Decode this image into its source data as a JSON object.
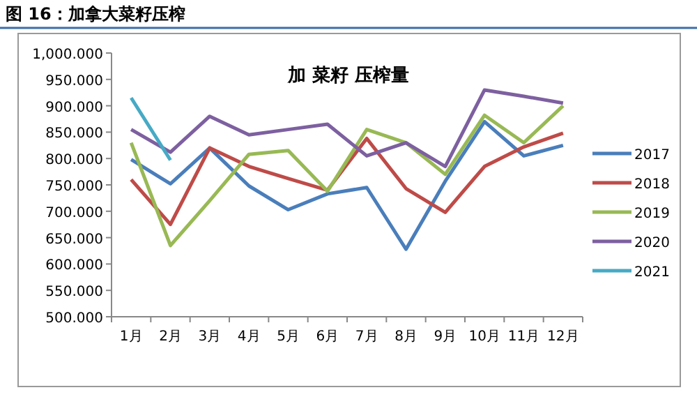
{
  "chart_data": {
    "type": "line",
    "title": "图 16：加拿大菜籽压榨",
    "subtitle": "加 菜籽 压榨量",
    "categories": [
      "1月",
      "2月",
      "3月",
      "4月",
      "5月",
      "6月",
      "7月",
      "8月",
      "9月",
      "10月",
      "11月",
      "12月"
    ],
    "series": [
      {
        "name": "2017",
        "color": "#4a7ebb",
        "values": [
          798,
          752,
          820,
          748,
          703,
          733,
          745,
          628,
          757,
          870,
          805,
          825
        ]
      },
      {
        "name": "2018",
        "color": "#be4b48",
        "values": [
          760,
          675,
          820,
          785,
          762,
          740,
          838,
          743,
          698,
          785,
          822,
          848
        ]
      },
      {
        "name": "2019",
        "color": "#98b954",
        "values": [
          830,
          635,
          720,
          808,
          815,
          738,
          855,
          830,
          770,
          882,
          830,
          900
        ]
      },
      {
        "name": "2020",
        "color": "#7d60a0",
        "values": [
          855,
          812,
          880,
          845,
          855,
          865,
          805,
          830,
          785,
          930,
          918,
          905
        ]
      },
      {
        "name": "2021",
        "color": "#46aac5",
        "values": [
          915,
          797,
          null,
          null,
          null,
          null,
          null,
          null,
          null,
          null,
          null,
          null
        ]
      }
    ],
    "ylim": [
      500,
      1000
    ],
    "yticks": [
      {
        "value": 500,
        "label": "500.000"
      },
      {
        "value": 550,
        "label": "550.000"
      },
      {
        "value": 600,
        "label": "600.000"
      },
      {
        "value": 650,
        "label": "650.000"
      },
      {
        "value": 700,
        "label": "700.000"
      },
      {
        "value": 750,
        "label": "750.000"
      },
      {
        "value": 800,
        "label": "800.000"
      },
      {
        "value": 850,
        "label": "850.000"
      },
      {
        "value": 900,
        "label": "900.000"
      },
      {
        "value": 950,
        "label": "950.000"
      },
      {
        "value": 1000,
        "label": "1,000.000"
      }
    ],
    "grid": false,
    "legend": "right",
    "marker": "none",
    "line_style": "solid"
  }
}
